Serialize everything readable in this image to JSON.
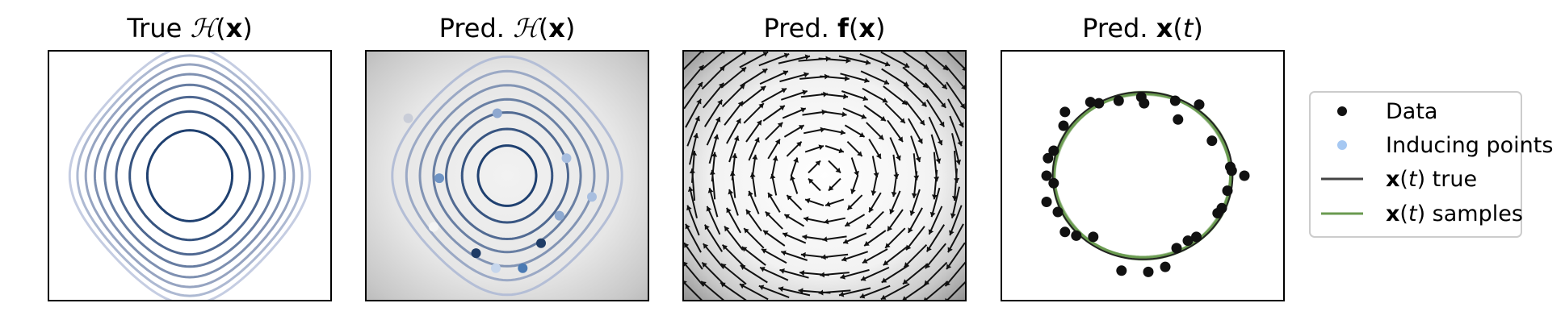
{
  "figure": {
    "panels": [
      {
        "id": "true_H",
        "title_parts": [
          "True ",
          "ℋ",
          "(",
          "x",
          ")"
        ]
      },
      {
        "id": "pred_H",
        "title_parts": [
          "Pred. ",
          "ℋ",
          "(",
          "x",
          ")"
        ]
      },
      {
        "id": "pred_f",
        "title_parts": [
          "Pred. ",
          "f",
          "(",
          "x",
          ")"
        ]
      },
      {
        "id": "pred_xt",
        "title_parts": [
          "Pred. ",
          "x",
          "(",
          "t",
          ")"
        ]
      }
    ],
    "legend": {
      "placement": "right",
      "entries": [
        {
          "label": "Data",
          "marker": "dot",
          "color": "#111111"
        },
        {
          "label": "Inducing points",
          "marker": "dot",
          "color": "#a6c8f2"
        },
        {
          "label_parts": [
            "x",
            "(",
            "t",
            ") true"
          ],
          "marker": "line",
          "color": "#444444"
        },
        {
          "label_parts": [
            "x",
            "(",
            "t",
            ") samples"
          ],
          "marker": "line",
          "color": "#6a9a50"
        }
      ]
    }
  },
  "chart_data": [
    {
      "type": "contour",
      "panel": "true_H",
      "title": "True ℋ(x)",
      "xlim": [
        -1,
        1
      ],
      "ylim": [
        -1,
        1
      ],
      "axes_ticks": false,
      "contour_levels": [
        0.1,
        0.2,
        0.3,
        0.4,
        0.5,
        0.6,
        0.7,
        0.8
      ],
      "colormap": "Blues (dark at low level)"
    },
    {
      "type": "contour",
      "panel": "pred_H",
      "title": "Pred. ℋ(x)",
      "xlim": [
        -1,
        1
      ],
      "ylim": [
        -1,
        1
      ],
      "axes_ticks": false,
      "background": "grey shading",
      "contour_levels": [
        0.05,
        0.12,
        0.22,
        0.32,
        0.45,
        0.6,
        0.78
      ],
      "inducing_points": [
        {
          "x": -0.7,
          "y": 0.46,
          "color": "#c9cdd8"
        },
        {
          "x": -0.07,
          "y": 0.5,
          "color": "#8ea8d0"
        },
        {
          "x": 0.42,
          "y": 0.14,
          "color": "#a8bedf"
        },
        {
          "x": 0.6,
          "y": -0.17,
          "color": "#a8bedf"
        },
        {
          "x": -0.48,
          "y": -0.02,
          "color": "#6f94c4"
        },
        {
          "x": 0.37,
          "y": -0.32,
          "color": "#8faad0"
        },
        {
          "x": -0.52,
          "y": -0.41,
          "color": "#f4f4f4"
        },
        {
          "x": 0.24,
          "y": -0.54,
          "color": "#1f3c66"
        },
        {
          "x": -0.22,
          "y": -0.62,
          "color": "#1f3c66"
        },
        {
          "x": 0.11,
          "y": -0.74,
          "color": "#4a7ab3"
        },
        {
          "x": -0.08,
          "y": -0.74,
          "color": "#c6d6ec"
        }
      ]
    },
    {
      "type": "quiver",
      "panel": "pred_f",
      "title": "Pred. f(x)",
      "xlim": [
        -1,
        1
      ],
      "ylim": [
        -1,
        1
      ],
      "axes_ticks": false,
      "background": "grey radial shading",
      "field": "rotational (clockwise), magnitude increasing with radius",
      "grid": [
        14,
        14
      ]
    },
    {
      "type": "scatter",
      "panel": "pred_xt",
      "title": "Pred. x(t)",
      "xlim": [
        -1,
        1
      ],
      "ylim": [
        -1,
        1
      ],
      "axes_ticks": false,
      "series": [
        {
          "name": "Data",
          "points": [
            [
              -0.55,
              0.51
            ],
            [
              -0.37,
              0.59
            ],
            [
              -0.31,
              0.58
            ],
            [
              -0.17,
              0.6
            ],
            [
              -0.01,
              0.63
            ],
            [
              0.01,
              0.58
            ],
            [
              0.23,
              0.6
            ],
            [
              0.4,
              0.57
            ],
            [
              0.25,
              0.45
            ],
            [
              0.49,
              0.28
            ],
            [
              -0.56,
              0.4
            ],
            [
              -0.63,
              0.2
            ],
            [
              -0.67,
              0.14
            ],
            [
              -0.68,
              0.0
            ],
            [
              -0.63,
              -0.06
            ],
            [
              0.62,
              0.07
            ],
            [
              0.63,
              0.04
            ],
            [
              0.72,
              0.0
            ],
            [
              -0.68,
              -0.21
            ],
            [
              -0.6,
              -0.29
            ],
            [
              0.6,
              -0.12
            ],
            [
              0.56,
              -0.26
            ],
            [
              0.53,
              -0.3
            ],
            [
              -0.55,
              -0.45
            ],
            [
              -0.47,
              -0.48
            ],
            [
              -0.35,
              -0.49
            ],
            [
              0.38,
              -0.49
            ],
            [
              0.32,
              -0.52
            ],
            [
              0.24,
              -0.58
            ],
            [
              0.16,
              -0.73
            ],
            [
              -0.15,
              -0.76
            ],
            [
              0.04,
              -0.77
            ]
          ]
        },
        {
          "name": "x(t) true",
          "circle_radius": 0.67
        },
        {
          "name": "x(t) samples",
          "circle_radius": 0.66
        }
      ]
    }
  ]
}
